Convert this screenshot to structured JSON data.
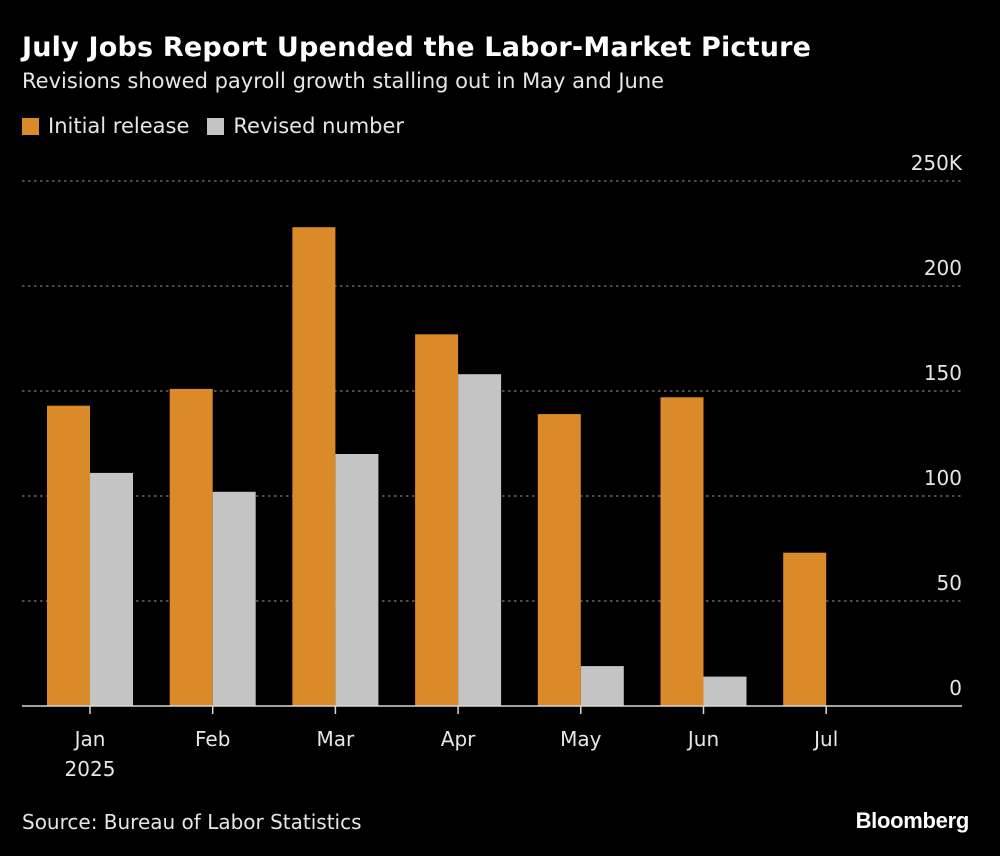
{
  "title": "July Jobs Report Upended the Labor-Market Picture",
  "subtitle": "Revisions showed payroll growth stalling out in May and June",
  "source": "Source: Bureau of Labor Statistics",
  "brand": "Bloomberg",
  "colors": {
    "background": "#000000",
    "initial": "#db8a2a",
    "revised": "#c4c4c4",
    "grid": "#7a7a7a",
    "text": "#e6e6e6"
  },
  "chart_data": {
    "type": "bar",
    "categories": [
      "Jan",
      "Feb",
      "Mar",
      "Apr",
      "May",
      "Jun",
      "Jul"
    ],
    "category_sublabels": [
      "2025",
      "",
      "",
      "",
      "",
      "",
      ""
    ],
    "series": [
      {
        "name": "Initial release",
        "values": [
          143,
          151,
          228,
          177,
          139,
          147,
          73
        ]
      },
      {
        "name": "Revised number",
        "values": [
          111,
          102,
          120,
          158,
          19,
          14,
          null
        ]
      }
    ],
    "ylim": [
      0,
      250
    ],
    "yticks": [
      0,
      50,
      100,
      150,
      200,
      250
    ],
    "ytick_labels": [
      "0",
      "50",
      "100",
      "150",
      "200",
      "250K"
    ],
    "y_axis_side": "right",
    "grid": true,
    "legend_position": "top-left"
  }
}
